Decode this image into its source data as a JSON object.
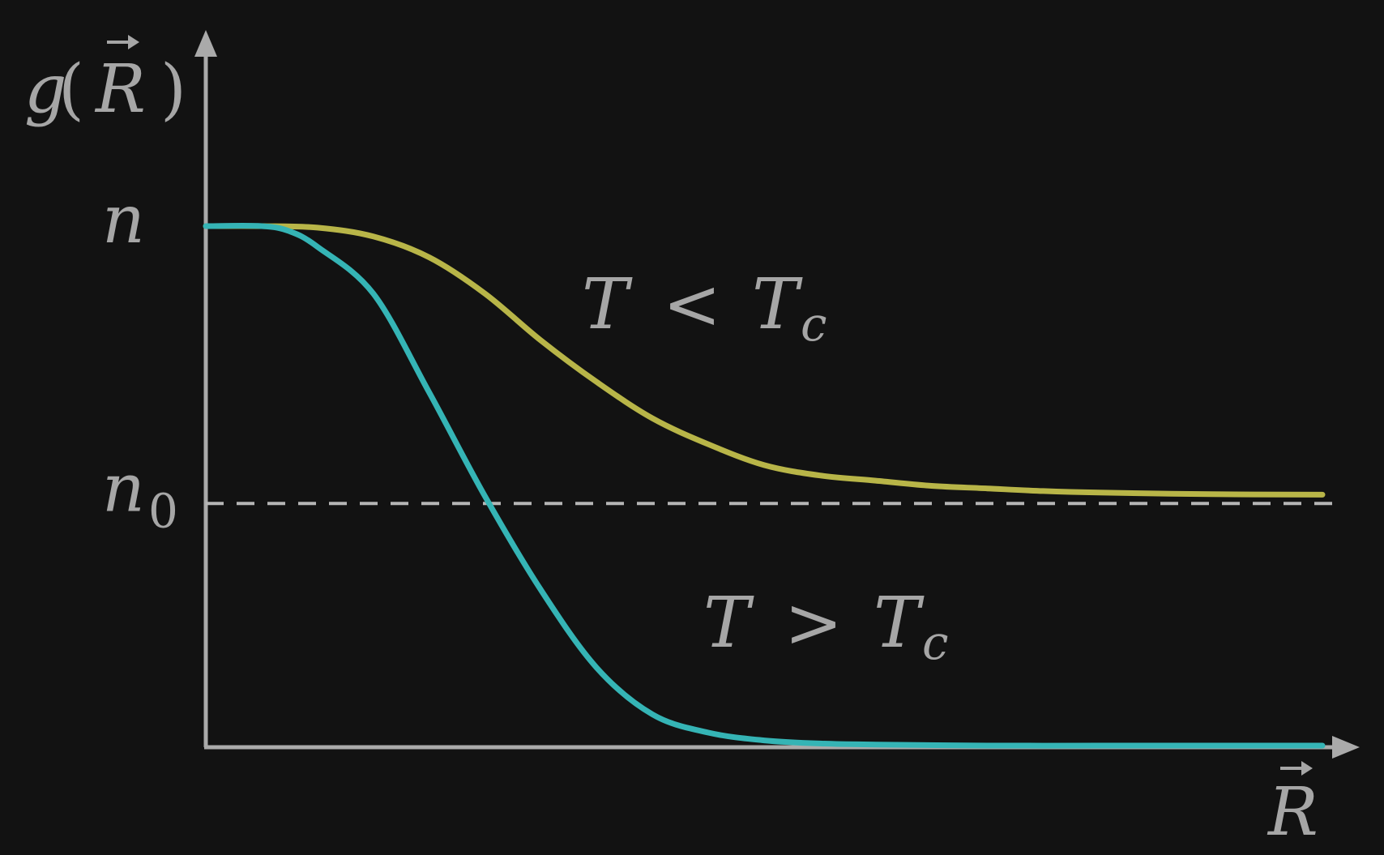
{
  "chart_data": {
    "type": "line",
    "title": "",
    "xlabel": "R",
    "ylabel_func": "g",
    "ylabel_arg": "R",
    "x_range": [
      0,
      10
    ],
    "ylim": [
      0,
      1
    ],
    "y_ticks": [
      {
        "base": "n",
        "sub": "",
        "value": 1.0
      },
      {
        "base": "n",
        "sub": "0",
        "value": 0.466
      }
    ],
    "reference_line": {
      "value": 0.466,
      "style": "dashed",
      "color": "#b5b5b5"
    },
    "series": [
      {
        "name": "T < Tc",
        "label_left": "T",
        "label_op": "<",
        "label_right": "T",
        "label_sub": "c",
        "color": "#b8b548",
        "x": [
          0,
          0.5,
          1.0,
          1.5,
          2.0,
          2.5,
          3.0,
          3.5,
          4.0,
          4.5,
          5.0,
          5.5,
          6.0,
          6.5,
          7.0,
          7.5,
          8.0,
          9.0,
          10.0
        ],
        "y": [
          1.0,
          1.0,
          0.997,
          0.98,
          0.94,
          0.87,
          0.78,
          0.7,
          0.63,
          0.58,
          0.54,
          0.52,
          0.51,
          0.5,
          0.495,
          0.49,
          0.487,
          0.484,
          0.483
        ]
      },
      {
        "name": "T > Tc",
        "label_left": "T",
        "label_op": ">",
        "label_right": "T",
        "label_sub": "c",
        "color": "#35b4b5",
        "x": [
          0,
          0.5,
          0.75,
          1.0,
          1.5,
          2.0,
          2.5,
          3.0,
          3.5,
          4.0,
          4.5,
          5.0,
          5.5,
          6.0,
          7.0,
          8.0,
          9.0,
          10.0
        ],
        "y": [
          1.0,
          1.0,
          0.99,
          0.96,
          0.87,
          0.68,
          0.48,
          0.3,
          0.15,
          0.06,
          0.025,
          0.01,
          0.004,
          0.002,
          0.0,
          0.0,
          0.0,
          0.0
        ]
      }
    ]
  }
}
